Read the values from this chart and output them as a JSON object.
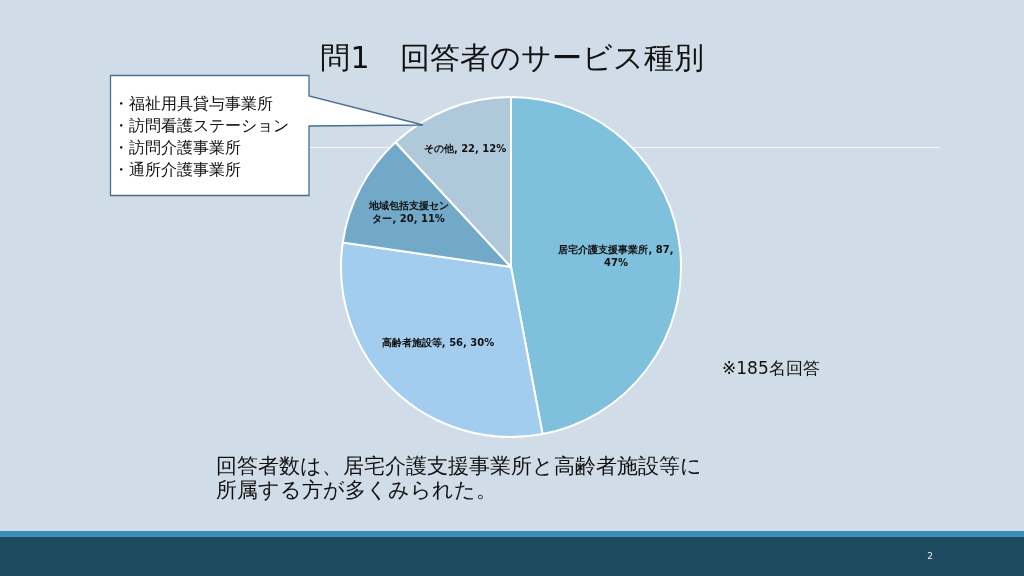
{
  "chart_data": {
    "type": "pie",
    "title": "問1　回答者のサービス種別",
    "categories": [
      "居宅介護支援事業所",
      "高齢者施設等",
      "地域包括支援センター",
      "その他"
    ],
    "values": [
      87,
      56,
      20,
      22
    ],
    "colors": [
      "#7fc0dc",
      "#a3cdee",
      "#72a8c8",
      "#b0c9da"
    ],
    "value_labels": [
      "87, 47%",
      "56, 30%",
      "20, 11%",
      "22, 12%"
    ],
    "annotations": [
      "・福祉用具貸与事業所",
      "・訪問看護ステーション",
      "・訪問介護事業所",
      "・通所介護事業所",
      "※185名回答",
      "回答者数は、居宅介護支援事業所と高齢者施設等に所属する方が多くみられた。",
      "2"
    ]
  }
}
